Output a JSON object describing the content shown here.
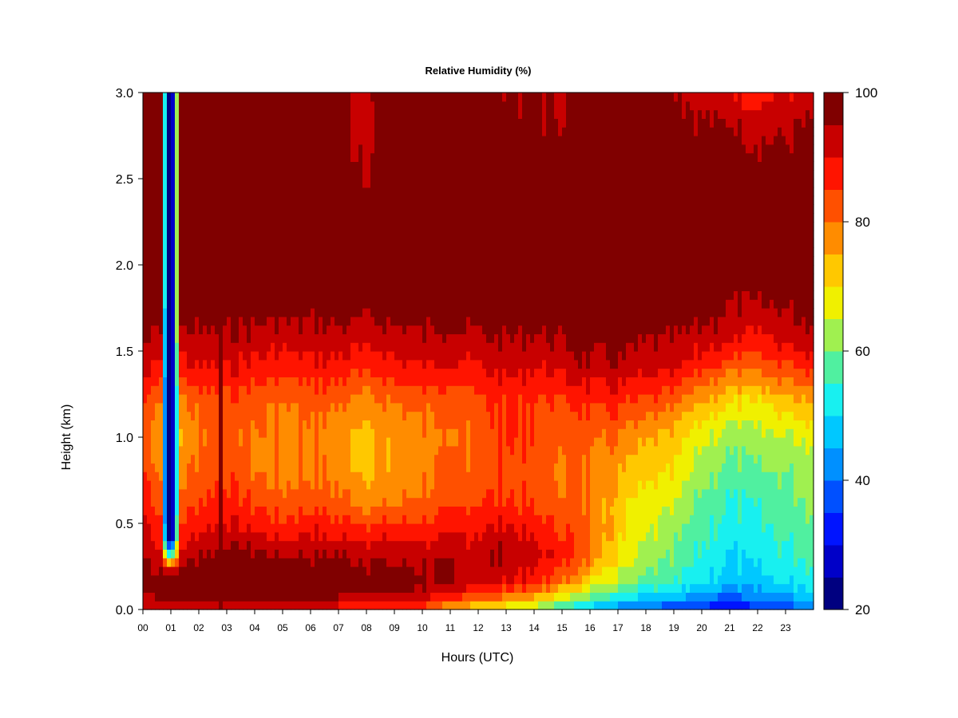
{
  "chart_data": {
    "type": "heatmap",
    "title": "Relative Humidity (%)",
    "xlabel": "Hours (UTC)",
    "ylabel": "Height (km)",
    "xlim": [
      0,
      24
    ],
    "ylim": [
      0,
      3
    ],
    "x_ticks": [
      "00",
      "01",
      "02",
      "03",
      "04",
      "05",
      "06",
      "07",
      "08",
      "09",
      "10",
      "11",
      "12",
      "13",
      "14",
      "15",
      "16",
      "17",
      "18",
      "19",
      "20",
      "21",
      "22",
      "23"
    ],
    "y_ticks": [
      "0.0",
      "0.5",
      "1.0",
      "1.5",
      "2.0",
      "2.5",
      "3.0"
    ],
    "colorbar": {
      "range": [
        20,
        100
      ],
      "ticks": [
        "20",
        "40",
        "60",
        "80",
        "100"
      ],
      "levels": [
        20,
        25,
        30,
        35,
        40,
        45,
        50,
        55,
        60,
        65,
        70,
        75,
        80,
        85,
        90,
        95,
        100
      ],
      "colors": [
        "#000080",
        "#0000c8",
        "#0014ff",
        "#0050ff",
        "#0090ff",
        "#00c8ff",
        "#18f0f0",
        "#50f0a0",
        "#a0f050",
        "#f0f000",
        "#ffc800",
        "#ff8c00",
        "#ff5000",
        "#ff1400",
        "#c80000",
        "#800000"
      ]
    },
    "height_levels_km": [
      0.0,
      0.05,
      0.15,
      0.3,
      0.45,
      0.6,
      0.8,
      1.0,
      1.2,
      1.4,
      1.6,
      1.8,
      2.0,
      2.2,
      2.5,
      2.8,
      3.0
    ],
    "time_hours": [
      0,
      1,
      2,
      3,
      4,
      5,
      6,
      7,
      8,
      9,
      10,
      11,
      12,
      13,
      14,
      15,
      16,
      17,
      18,
      19,
      20,
      21,
      22,
      23,
      24
    ],
    "profiles_rh_pct": [
      [
        88,
        92,
        98,
        95,
        92,
        90,
        86,
        84,
        86,
        92,
        96,
        99,
        100,
        100,
        100,
        100,
        100
      ],
      [
        86,
        96,
        98,
        92,
        84,
        80,
        75,
        72,
        76,
        86,
        94,
        99,
        100,
        100,
        100,
        100,
        100
      ],
      [
        86,
        94,
        98,
        96,
        90,
        86,
        82,
        80,
        82,
        90,
        95,
        99,
        100,
        100,
        100,
        100,
        100
      ],
      [
        88,
        96,
        100,
        98,
        92,
        88,
        84,
        82,
        84,
        90,
        95,
        99,
        100,
        100,
        100,
        100,
        100
      ],
      [
        86,
        94,
        99,
        97,
        90,
        85,
        80,
        80,
        82,
        88,
        94,
        99,
        100,
        100,
        100,
        100,
        100
      ],
      [
        86,
        94,
        98,
        96,
        88,
        82,
        78,
        78,
        80,
        87,
        93,
        98,
        100,
        100,
        100,
        100,
        100
      ],
      [
        87,
        95,
        98,
        96,
        90,
        84,
        80,
        80,
        82,
        88,
        94,
        98,
        100,
        100,
        100,
        100,
        100
      ],
      [
        86,
        94,
        98,
        96,
        88,
        82,
        78,
        76,
        80,
        88,
        94,
        98,
        100,
        100,
        98,
        96,
        96
      ],
      [
        85,
        93,
        98,
        95,
        88,
        80,
        74,
        74,
        78,
        86,
        93,
        98,
        100,
        100,
        96,
        94,
        95
      ],
      [
        84,
        92,
        98,
        94,
        87,
        80,
        76,
        76,
        80,
        88,
        94,
        98,
        100,
        100,
        98,
        96,
        98
      ],
      [
        82,
        90,
        97,
        94,
        88,
        82,
        79,
        79,
        82,
        90,
        95,
        99,
        100,
        100,
        100,
        100,
        100
      ],
      [
        72,
        84,
        94,
        94,
        88,
        84,
        80,
        78,
        80,
        88,
        94,
        98,
        100,
        100,
        100,
        100,
        100
      ],
      [
        68,
        80,
        92,
        94,
        90,
        86,
        82,
        82,
        84,
        90,
        95,
        99,
        100,
        100,
        100,
        100,
        100
      ],
      [
        64,
        76,
        90,
        96,
        92,
        86,
        84,
        86,
        86,
        92,
        96,
        99,
        100,
        100,
        100,
        98,
        96
      ],
      [
        60,
        72,
        86,
        92,
        88,
        84,
        82,
        84,
        84,
        90,
        95,
        99,
        100,
        100,
        100,
        96,
        95
      ],
      [
        52,
        64,
        80,
        88,
        86,
        82,
        80,
        82,
        84,
        92,
        96,
        99,
        100,
        100,
        100,
        96,
        95
      ],
      [
        46,
        56,
        70,
        80,
        82,
        80,
        80,
        82,
        86,
        94,
        98,
        100,
        100,
        100,
        100,
        98,
        96
      ],
      [
        40,
        50,
        62,
        70,
        72,
        72,
        76,
        80,
        86,
        94,
        98,
        100,
        100,
        100,
        100,
        100,
        98
      ],
      [
        36,
        46,
        58,
        64,
        66,
        68,
        72,
        76,
        84,
        92,
        96,
        99,
        100,
        100,
        100,
        100,
        100
      ],
      [
        34,
        44,
        56,
        60,
        62,
        66,
        70,
        74,
        82,
        92,
        96,
        99,
        100,
        100,
        100,
        98,
        96
      ],
      [
        32,
        40,
        50,
        54,
        56,
        58,
        62,
        66,
        74,
        86,
        94,
        98,
        100,
        100,
        100,
        96,
        92
      ],
      [
        28,
        36,
        46,
        50,
        52,
        54,
        58,
        62,
        70,
        82,
        92,
        96,
        100,
        100,
        100,
        96,
        90
      ],
      [
        32,
        40,
        48,
        52,
        54,
        56,
        60,
        64,
        70,
        82,
        90,
        96,
        100,
        100,
        98,
        94,
        88
      ],
      [
        36,
        42,
        50,
        54,
        56,
        58,
        60,
        64,
        72,
        84,
        92,
        96,
        98,
        100,
        98,
        94,
        90
      ],
      [
        40,
        46,
        52,
        56,
        58,
        60,
        62,
        66,
        74,
        86,
        94,
        98,
        100,
        100,
        100,
        96,
        92
      ]
    ],
    "dry_plume": {
      "center_hour": 0.98,
      "half_width_hours": 0.2,
      "base_km": 0.22,
      "top_km": 3.0,
      "min_rh_pct": 22
    },
    "moist_streak": {
      "hour": 2.75,
      "rh_pct": 100,
      "top_km": 1.75
    }
  }
}
